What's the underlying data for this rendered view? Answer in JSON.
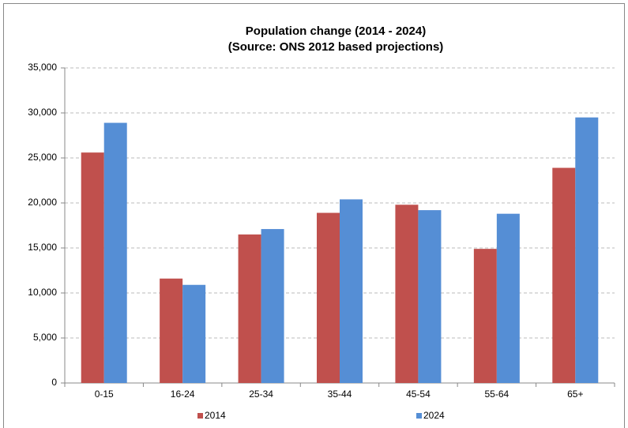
{
  "chart_data": {
    "type": "bar",
    "title": "Population change (2014 - 2024)",
    "subtitle": "(Source: ONS 2012 based projections)",
    "categories": [
      "0-15",
      "16-24",
      "25-34",
      "35-44",
      "45-54",
      "55-64",
      "65+"
    ],
    "series": [
      {
        "name": "2014",
        "color": "#c0504d",
        "values": [
          25600,
          11600,
          16500,
          18900,
          19800,
          14900,
          23900
        ]
      },
      {
        "name": "2024",
        "color": "#558ed5",
        "values": [
          28900,
          10900,
          17100,
          20400,
          19200,
          18800,
          29500
        ]
      }
    ],
    "ylim": [
      0,
      35000
    ],
    "yticks": [
      0,
      {
        "value": 5000,
        "label": "5,000"
      },
      {
        "value": 10000,
        "label": "10,000"
      },
      {
        "value": 15000,
        "label": "15,000"
      },
      {
        "value": 20000,
        "label": "20,000"
      },
      {
        "value": 25000,
        "label": "25,000"
      },
      {
        "value": 30000,
        "label": "30,000"
      },
      {
        "value": 35000,
        "label": "35,000"
      }
    ],
    "grid": true,
    "legend": "bottom"
  }
}
